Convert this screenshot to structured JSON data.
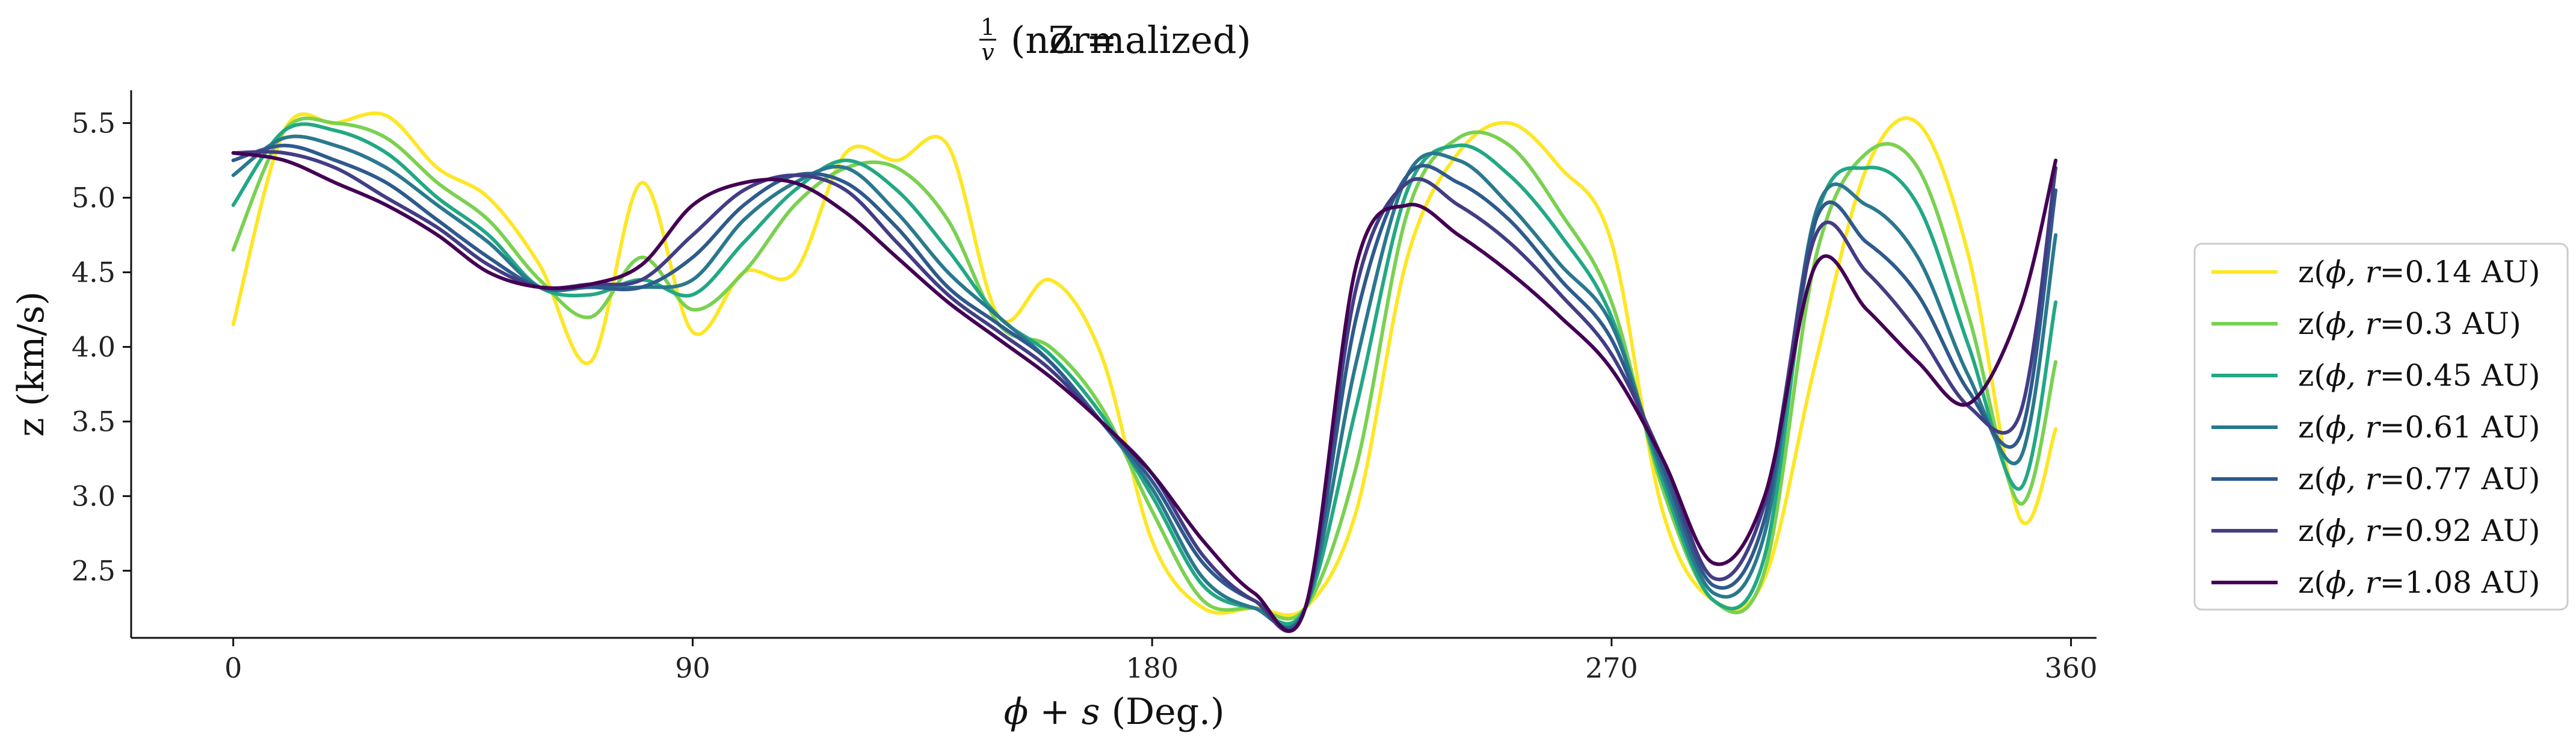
{
  "chart_data": {
    "type": "line",
    "title_prefix": "Z =",
    "title_frac_num": "1",
    "title_frac_den": "v",
    "title_suffix": "(normalized)",
    "xlabel_math": "ϕ + s",
    "xlabel_unit": "(Deg.)",
    "ylabel": "z (km/s)",
    "xlim": [
      -20,
      365
    ],
    "ylim": [
      2.05,
      5.72
    ],
    "xticks": [
      0,
      90,
      180,
      270,
      360
    ],
    "xtick_labels": [
      "0",
      "90",
      "180",
      "270",
      "360"
    ],
    "yticks": [
      2.5,
      3.0,
      3.5,
      4.0,
      4.5,
      5.0,
      5.5
    ],
    "ytick_labels": [
      "2.5",
      "3.0",
      "3.5",
      "4.0",
      "4.5",
      "5.0",
      "5.5"
    ],
    "grid": false,
    "legend_placement": "outside-right",
    "legend_frame": {
      "stroke": "#cccccc",
      "fill": "#ffffff"
    },
    "x": [
      0,
      10,
      20,
      30,
      40,
      50,
      60,
      70,
      80,
      90,
      100,
      110,
      120,
      130,
      140,
      150,
      160,
      170,
      180,
      190,
      200,
      210,
      220,
      230,
      240,
      250,
      260,
      270,
      280,
      290,
      300,
      310,
      320,
      330,
      340,
      350,
      357
    ],
    "series": [
      {
        "label_prefix": "z(",
        "label_math": "ϕ, r",
        "label_suffix": "=0.14 AU)",
        "color": "#fde725",
        "values": [
          4.15,
          5.45,
          5.5,
          5.55,
          5.2,
          5.0,
          4.55,
          3.9,
          5.1,
          4.1,
          4.5,
          4.5,
          5.3,
          5.25,
          5.35,
          4.2,
          4.45,
          3.95,
          2.7,
          2.25,
          2.25,
          2.25,
          2.9,
          4.6,
          5.3,
          5.5,
          5.2,
          4.7,
          2.9,
          2.3,
          2.45,
          3.9,
          5.2,
          5.5,
          4.6,
          2.85,
          3.45
        ]
      },
      {
        "label_prefix": "z(",
        "label_math": "ϕ, r",
        "label_suffix": "=0.3 AU)",
        "color": "#7ad151",
        "values": [
          4.65,
          5.45,
          5.5,
          5.4,
          5.1,
          4.85,
          4.45,
          4.2,
          4.6,
          4.25,
          4.5,
          4.95,
          5.2,
          5.2,
          4.85,
          4.15,
          4.0,
          3.6,
          2.9,
          2.3,
          2.25,
          2.25,
          3.2,
          4.9,
          5.4,
          5.35,
          4.9,
          4.3,
          3.05,
          2.3,
          2.5,
          4.6,
          5.3,
          5.2,
          4.2,
          2.95,
          3.9
        ]
      },
      {
        "label_prefix": "z(",
        "label_math": "ϕ, r",
        "label_suffix": "=0.45 AU)",
        "color": "#22a884",
        "values": [
          4.95,
          5.45,
          5.45,
          5.3,
          5.0,
          4.75,
          4.4,
          4.35,
          4.45,
          4.35,
          4.7,
          5.05,
          5.25,
          5.05,
          4.65,
          4.2,
          3.95,
          3.55,
          3.0,
          2.4,
          2.25,
          2.25,
          3.6,
          5.05,
          5.35,
          5.15,
          4.75,
          4.2,
          3.1,
          2.3,
          2.6,
          4.85,
          5.2,
          4.95,
          4.0,
          3.05,
          4.3
        ]
      },
      {
        "label_prefix": "z(",
        "label_math": "ϕ, r",
        "label_suffix": "=0.61 AU)",
        "color": "#2a788e",
        "values": [
          5.15,
          5.4,
          5.35,
          5.2,
          4.95,
          4.7,
          4.4,
          4.4,
          4.4,
          4.45,
          4.85,
          5.1,
          5.2,
          4.9,
          4.5,
          4.2,
          3.9,
          3.5,
          3.05,
          2.45,
          2.25,
          2.25,
          3.9,
          5.15,
          5.25,
          4.95,
          4.55,
          4.15,
          3.15,
          2.35,
          2.75,
          4.9,
          4.95,
          4.6,
          3.8,
          3.25,
          4.75
        ]
      },
      {
        "label_prefix": "z(",
        "label_math": "ϕ, r",
        "label_suffix": "=0.77 AU)",
        "color": "#2e5a8c",
        "values": [
          5.25,
          5.35,
          5.25,
          5.1,
          4.85,
          4.6,
          4.4,
          4.4,
          4.4,
          4.6,
          4.95,
          5.15,
          5.1,
          4.8,
          4.4,
          4.15,
          3.9,
          3.5,
          3.1,
          2.55,
          2.3,
          2.25,
          4.2,
          5.15,
          5.1,
          4.85,
          4.45,
          4.05,
          3.2,
          2.4,
          2.85,
          4.85,
          4.7,
          4.35,
          3.7,
          3.4,
          5.05
        ]
      },
      {
        "label_prefix": "z(",
        "label_math": "ϕ, r",
        "label_suffix": "=0.92 AU)",
        "color": "#433d84",
        "values": [
          5.3,
          5.3,
          5.2,
          5.0,
          4.8,
          4.55,
          4.4,
          4.42,
          4.45,
          4.75,
          5.05,
          5.15,
          5.05,
          4.7,
          4.35,
          4.1,
          3.85,
          3.5,
          3.15,
          2.6,
          2.3,
          2.25,
          4.4,
          5.1,
          4.95,
          4.7,
          4.35,
          3.95,
          3.25,
          2.45,
          2.95,
          4.75,
          4.5,
          4.1,
          3.6,
          3.55,
          5.2
        ]
      },
      {
        "label_prefix": "z(",
        "label_math": "ϕ, r",
        "label_suffix": "=1.08 AU)",
        "color": "#440154",
        "values": [
          5.3,
          5.25,
          5.1,
          4.95,
          4.75,
          4.5,
          4.4,
          4.42,
          4.55,
          4.95,
          5.1,
          5.1,
          4.9,
          4.6,
          4.3,
          4.05,
          3.8,
          3.5,
          3.15,
          2.7,
          2.35,
          2.25,
          4.55,
          4.95,
          4.75,
          4.5,
          4.2,
          3.85,
          3.25,
          2.55,
          3.0,
          4.55,
          4.25,
          3.9,
          3.62,
          4.25,
          5.25
        ]
      }
    ]
  }
}
